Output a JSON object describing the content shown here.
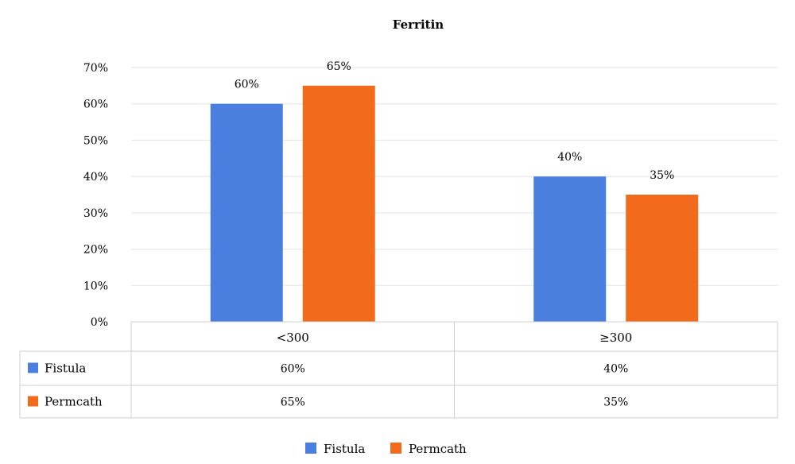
{
  "chart_data": {
    "type": "bar",
    "title": "Ferritin",
    "categories": [
      "<300",
      "≥300"
    ],
    "series": [
      {
        "name": "Fistula",
        "values": [
          60,
          40
        ],
        "labels": [
          "60%",
          "40%"
        ]
      },
      {
        "name": "Permcath",
        "values": [
          65,
          35
        ],
        "labels": [
          "65%",
          "35%"
        ]
      }
    ],
    "yticks": [
      "0%",
      "10%",
      "20%",
      "30%",
      "40%",
      "50%",
      "60%",
      "70%"
    ],
    "ylim": [
      0,
      70
    ],
    "grid": true,
    "legend_placement": "bottom",
    "data_table": true,
    "colors": {
      "Fistula": "#4a7fe0",
      "Permcath": "#f26a1b"
    }
  }
}
